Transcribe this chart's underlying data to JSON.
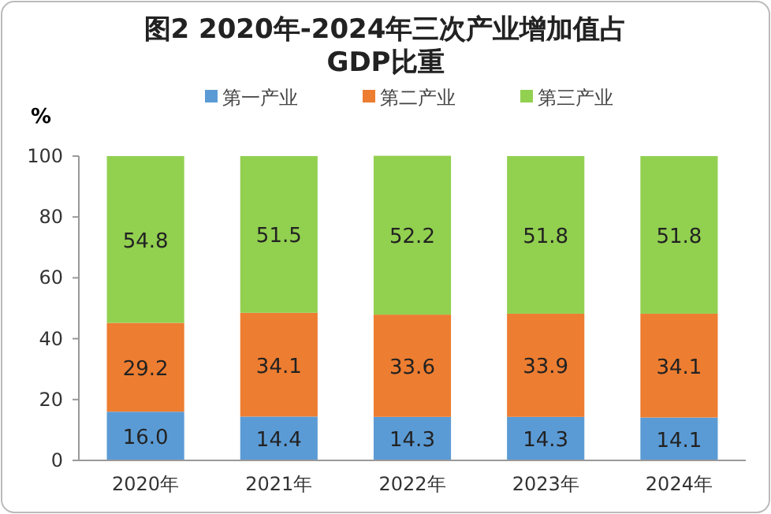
{
  "chart_data": {
    "type": "bar",
    "title": "图2 2020年-2024年三次产业增加值占GDP比重",
    "ylabel": "%",
    "categories": [
      "2020年",
      "2021年",
      "2022年",
      "2023年",
      "2024年"
    ],
    "series": [
      {
        "name": "第一产业",
        "color": "#5b9bd5",
        "values": [
          16.0,
          14.4,
          14.3,
          14.3,
          14.1
        ],
        "value_labels": [
          "16.0",
          "14.4",
          "14.3",
          "14.3",
          "14.1"
        ]
      },
      {
        "name": "第二产业",
        "color": "#ed7d31",
        "values": [
          29.2,
          34.1,
          33.6,
          33.9,
          34.1
        ],
        "value_labels": [
          "29.2",
          "34.1",
          "33.6",
          "33.9",
          "34.1"
        ]
      },
      {
        "name": "第三产业",
        "color": "#92d050",
        "values": [
          54.8,
          51.5,
          52.2,
          51.8,
          51.8
        ],
        "value_labels": [
          "54.8",
          "51.5",
          "52.2",
          "51.8",
          "51.8"
        ]
      }
    ],
    "stacked": true,
    "ylim": [
      0,
      100
    ],
    "yticks": [
      0,
      20,
      40,
      60,
      80,
      100
    ],
    "legend": "top",
    "grid": false
  }
}
